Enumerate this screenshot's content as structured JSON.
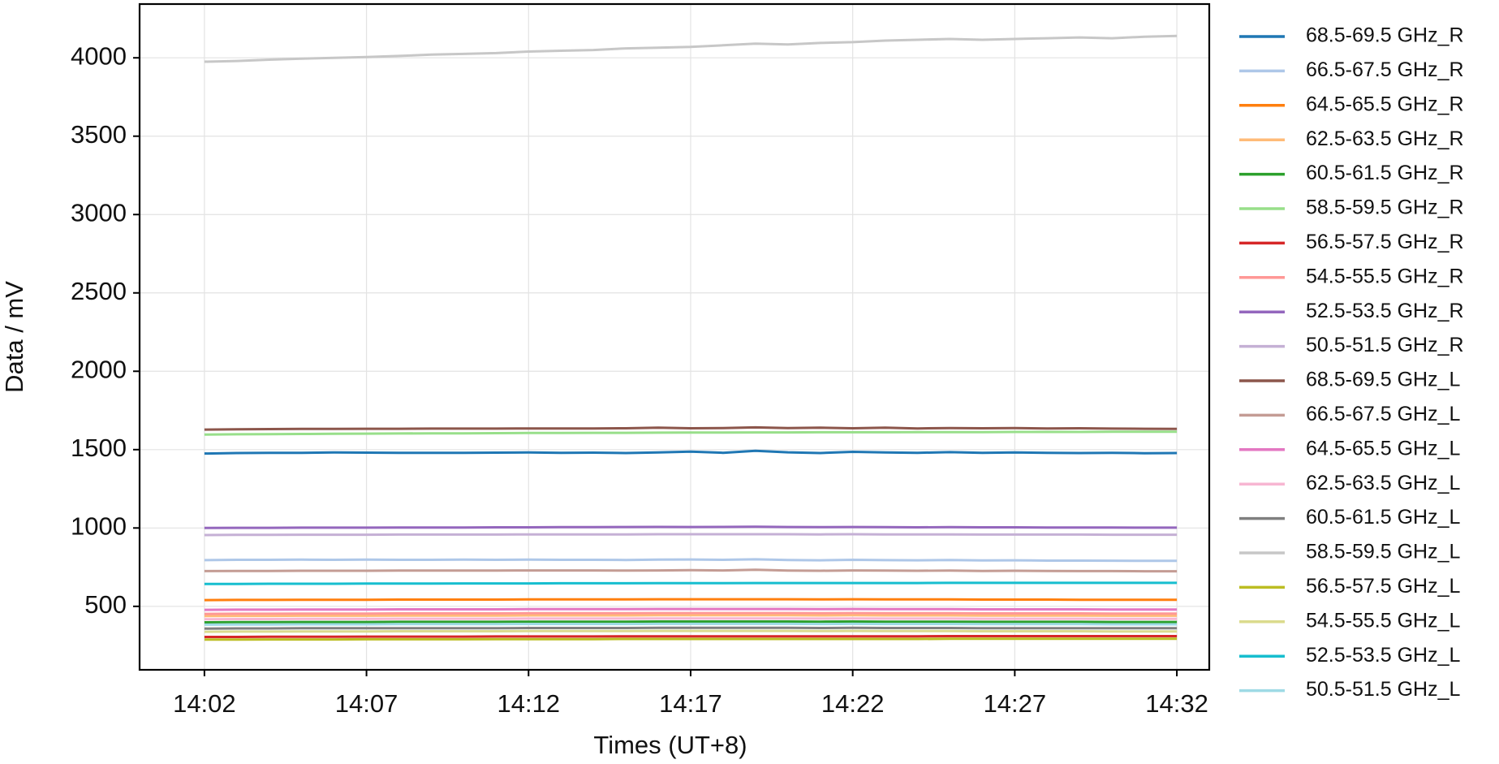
{
  "chart_data": {
    "type": "line",
    "xlabel": "Times (UT+8)",
    "ylabel": "Data / mV",
    "x": [
      "14:02",
      "14:03",
      "14:04",
      "14:05",
      "14:06",
      "14:07",
      "14:08",
      "14:09",
      "14:10",
      "14:11",
      "14:12",
      "14:13",
      "14:14",
      "14:15",
      "14:16",
      "14:17",
      "14:18",
      "14:19",
      "14:20",
      "14:21",
      "14:22",
      "14:23",
      "14:24",
      "14:25",
      "14:26",
      "14:27",
      "14:28",
      "14:29",
      "14:30",
      "14:31",
      "14:32"
    ],
    "xlim": [
      "14:00",
      "14:33"
    ],
    "xticks": [
      "14:02",
      "14:07",
      "14:12",
      "14:17",
      "14:22",
      "14:27",
      "14:32"
    ],
    "ylim": [
      95,
      4343
    ],
    "yticks": [
      500,
      1000,
      1500,
      2000,
      2500,
      3000,
      3500,
      4000
    ],
    "grid": true,
    "legend": "outside-right",
    "series": [
      {
        "name": "68.5-69.5 GHz_R",
        "color": "#1f77b4",
        "values": [
          1475,
          1478,
          1480,
          1480,
          1482,
          1481,
          1480,
          1479,
          1480,
          1481,
          1482,
          1480,
          1481,
          1478,
          1482,
          1487,
          1480,
          1492,
          1483,
          1478,
          1486,
          1482,
          1480,
          1484,
          1479,
          1482,
          1480,
          1478,
          1480,
          1477,
          1478
        ]
      },
      {
        "name": "66.5-67.5 GHz_R",
        "color": "#aec7e8",
        "values": [
          795,
          797,
          797,
          798,
          797,
          798,
          797,
          797,
          798,
          797,
          798,
          797,
          797,
          796,
          798,
          799,
          797,
          800,
          796,
          794,
          797,
          795,
          794,
          796,
          793,
          794,
          792,
          792,
          791,
          790,
          790
        ]
      },
      {
        "name": "64.5-65.5 GHz_R",
        "color": "#ff7f0e",
        "values": [
          540,
          541,
          541,
          542,
          542,
          542,
          543,
          543,
          543,
          543,
          544,
          544,
          544,
          544,
          545,
          545,
          545,
          545,
          545,
          544,
          545,
          544,
          544,
          544,
          543,
          543,
          543,
          542,
          542,
          542,
          542
        ]
      },
      {
        "name": "62.5-63.5 GHz_R",
        "color": "#ffbb78",
        "values": [
          438,
          439,
          439,
          440,
          440,
          440,
          441,
          441,
          441,
          441,
          442,
          442,
          442,
          442,
          443,
          443,
          443,
          443,
          443,
          442,
          443,
          442,
          442,
          442,
          441,
          441,
          441,
          441,
          440,
          440,
          440
        ]
      },
      {
        "name": "60.5-61.5 GHz_R",
        "color": "#2ca02c",
        "values": [
          398,
          399,
          399,
          400,
          400,
          400,
          401,
          401,
          401,
          401,
          402,
          402,
          402,
          402,
          403,
          403,
          403,
          403,
          403,
          402,
          403,
          402,
          402,
          402,
          401,
          401,
          401,
          401,
          400,
          400,
          400
        ]
      },
      {
        "name": "58.5-59.5 GHz_R",
        "color": "#98df8a",
        "values": [
          1596,
          1598,
          1599,
          1600,
          1601,
          1602,
          1603,
          1604,
          1604,
          1605,
          1606,
          1606,
          1607,
          1607,
          1608,
          1609,
          1609,
          1610,
          1610,
          1611,
          1611,
          1611,
          1612,
          1612,
          1612,
          1613,
          1613,
          1613,
          1614,
          1614,
          1614
        ]
      },
      {
        "name": "56.5-57.5 GHz_R",
        "color": "#d62728",
        "values": [
          305,
          305,
          306,
          306,
          306,
          307,
          307,
          307,
          307,
          308,
          308,
          308,
          308,
          309,
          309,
          309,
          309,
          309,
          309,
          309,
          309,
          309,
          309,
          310,
          310,
          310,
          310,
          310,
          310,
          310,
          310
        ]
      },
      {
        "name": "54.5-55.5 GHz_R",
        "color": "#ff9896",
        "values": [
          452,
          453,
          453,
          454,
          454,
          454,
          455,
          455,
          455,
          455,
          456,
          456,
          456,
          456,
          457,
          457,
          457,
          457,
          457,
          456,
          457,
          456,
          456,
          456,
          455,
          455,
          455,
          455,
          454,
          454,
          454
        ]
      },
      {
        "name": "52.5-53.5 GHz_R",
        "color": "#9467bd",
        "values": [
          1000,
          1001,
          1001,
          1002,
          1002,
          1002,
          1003,
          1003,
          1003,
          1004,
          1004,
          1005,
          1005,
          1006,
          1007,
          1006,
          1007,
          1008,
          1006,
          1005,
          1006,
          1005,
          1004,
          1005,
          1004,
          1004,
          1003,
          1003,
          1003,
          1002,
          1002
        ]
      },
      {
        "name": "50.5-51.5 GHz_R",
        "color": "#c5b0d5",
        "values": [
          955,
          956,
          956,
          957,
          957,
          957,
          958,
          958,
          958,
          958,
          959,
          959,
          959,
          959,
          960,
          960,
          960,
          960,
          960,
          959,
          960,
          959,
          959,
          959,
          958,
          958,
          958,
          958,
          957,
          957,
          957
        ]
      },
      {
        "name": "68.5-69.5 GHz_L",
        "color": "#8c564b",
        "values": [
          1628,
          1630,
          1631,
          1632,
          1632,
          1633,
          1633,
          1634,
          1634,
          1634,
          1635,
          1635,
          1635,
          1636,
          1640,
          1636,
          1638,
          1642,
          1637,
          1640,
          1636,
          1640,
          1635,
          1638,
          1636,
          1638,
          1635,
          1636,
          1634,
          1633,
          1632
        ]
      },
      {
        "name": "66.5-67.5 GHz_L",
        "color": "#c49c94",
        "values": [
          725,
          726,
          726,
          727,
          727,
          727,
          728,
          728,
          728,
          728,
          729,
          729,
          729,
          728,
          729,
          731,
          729,
          733,
          728,
          727,
          729,
          728,
          727,
          728,
          726,
          727,
          726,
          725,
          725,
          724,
          724
        ]
      },
      {
        "name": "64.5-65.5 GHz_L",
        "color": "#e377c2",
        "values": [
          478,
          479,
          479,
          480,
          480,
          480,
          481,
          481,
          481,
          481,
          482,
          482,
          482,
          482,
          483,
          483,
          483,
          483,
          483,
          482,
          483,
          482,
          482,
          482,
          481,
          481,
          481,
          481,
          480,
          480,
          480
        ]
      },
      {
        "name": "62.5-63.5 GHz_L",
        "color": "#f7b6d2",
        "values": [
          418,
          419,
          419,
          420,
          420,
          420,
          421,
          421,
          421,
          421,
          422,
          422,
          422,
          422,
          423,
          423,
          423,
          423,
          423,
          422,
          423,
          422,
          422,
          422,
          421,
          421,
          421,
          421,
          420,
          420,
          420
        ]
      },
      {
        "name": "60.5-61.5 GHz_L",
        "color": "#7f7f7f",
        "values": [
          358,
          359,
          359,
          360,
          360,
          360,
          361,
          361,
          361,
          361,
          362,
          362,
          362,
          362,
          363,
          363,
          363,
          363,
          363,
          362,
          363,
          362,
          362,
          362,
          361,
          361,
          361,
          361,
          360,
          360,
          360
        ]
      },
      {
        "name": "58.5-59.5 GHz_L",
        "color": "#c7c7c7",
        "values": [
          3975,
          3980,
          3988,
          3995,
          4000,
          4005,
          4012,
          4020,
          4025,
          4030,
          4040,
          4045,
          4050,
          4060,
          4065,
          4070,
          4080,
          4090,
          4085,
          4095,
          4100,
          4110,
          4115,
          4120,
          4115,
          4120,
          4125,
          4130,
          4125,
          4135,
          4140
        ]
      },
      {
        "name": "56.5-57.5 GHz_L",
        "color": "#bcbd22",
        "values": [
          288,
          288,
          289,
          289,
          289,
          290,
          290,
          290,
          290,
          291,
          291,
          291,
          291,
          292,
          292,
          292,
          292,
          292,
          292,
          292,
          292,
          292,
          292,
          293,
          293,
          293,
          293,
          293,
          293,
          293,
          293
        ]
      },
      {
        "name": "54.5-55.5 GHz_L",
        "color": "#dbdb8d",
        "values": [
          338,
          339,
          339,
          340,
          340,
          340,
          341,
          341,
          341,
          341,
          342,
          342,
          342,
          342,
          343,
          343,
          343,
          343,
          343,
          342,
          343,
          342,
          342,
          342,
          341,
          341,
          341,
          341,
          340,
          340,
          340
        ]
      },
      {
        "name": "52.5-53.5 GHz_L",
        "color": "#17becf",
        "values": [
          643,
          643,
          644,
          644,
          644,
          645,
          645,
          645,
          646,
          646,
          646,
          647,
          647,
          647,
          648,
          648,
          648,
          649,
          649,
          649,
          649,
          649,
          649,
          650,
          650,
          650,
          650,
          650,
          650,
          650,
          650
        ]
      },
      {
        "name": "50.5-51.5 GHz_L",
        "color": "#9edae5",
        "values": [
          383,
          384,
          384,
          385,
          385,
          385,
          386,
          386,
          386,
          386,
          387,
          387,
          387,
          387,
          388,
          388,
          388,
          388,
          388,
          387,
          388,
          387,
          387,
          387,
          386,
          386,
          386,
          386,
          385,
          385,
          385
        ]
      }
    ]
  }
}
